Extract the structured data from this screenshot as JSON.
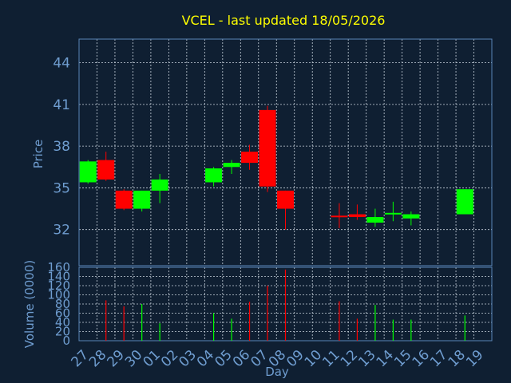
{
  "colors": {
    "background": "#0f1f32",
    "up": "#00ff00",
    "down": "#ff0000",
    "title": "#ffff00",
    "axis_text": "#6f9dd0",
    "grid": "#c8d2dc"
  },
  "chart_data": [
    {
      "type": "candlestick",
      "title": "VCEL - last updated 18/05/2026",
      "ylabel": "Price",
      "xlabel": "",
      "ylim": [
        29.4,
        45.7
      ],
      "yticks": [
        32,
        35,
        38,
        41,
        44
      ],
      "grid": true,
      "categories": [
        "27",
        "28",
        "29",
        "30",
        "01",
        "02",
        "03",
        "04",
        "05",
        "06",
        "07",
        "08",
        "09",
        "10",
        "11",
        "12",
        "13",
        "14",
        "15",
        "16",
        "17",
        "18",
        "19"
      ],
      "candles": [
        {
          "x": "27",
          "open": 35.4,
          "close": 36.9,
          "high": 37.0,
          "low": 35.3
        },
        {
          "x": "28",
          "open": 37.0,
          "close": 35.6,
          "high": 37.6,
          "low": 35.5
        },
        {
          "x": "29",
          "open": 34.8,
          "close": 33.5,
          "high": 34.9,
          "low": 33.4
        },
        {
          "x": "30",
          "open": 33.5,
          "close": 34.8,
          "high": 34.8,
          "low": 33.3
        },
        {
          "x": "01",
          "open": 34.8,
          "close": 35.6,
          "high": 36.0,
          "low": 33.9
        },
        {
          "x": "04",
          "open": 35.4,
          "close": 36.4,
          "high": 36.5,
          "low": 35.1
        },
        {
          "x": "05",
          "open": 36.5,
          "close": 36.8,
          "high": 37.0,
          "low": 36.0
        },
        {
          "x": "06",
          "open": 37.6,
          "close": 36.8,
          "high": 38.1,
          "low": 36.3
        },
        {
          "x": "07",
          "open": 40.6,
          "close": 35.1,
          "high": 40.9,
          "low": 34.7
        },
        {
          "x": "08",
          "open": 34.8,
          "close": 33.5,
          "high": 34.8,
          "low": 32.0
        },
        {
          "x": "11",
          "open": 33.0,
          "close": 32.9,
          "high": 33.9,
          "low": 32.1
        },
        {
          "x": "12",
          "open": 33.1,
          "close": 32.9,
          "high": 33.8,
          "low": 32.7
        },
        {
          "x": "13",
          "open": 32.5,
          "close": 32.9,
          "high": 33.5,
          "low": 32.2
        },
        {
          "x": "14",
          "open": 33.1,
          "close": 33.2,
          "high": 34.0,
          "low": 32.6
        },
        {
          "x": "15",
          "open": 32.8,
          "close": 33.1,
          "high": 33.3,
          "low": 32.3
        },
        {
          "x": "18",
          "open": 33.1,
          "close": 34.9,
          "high": 34.9,
          "low": 33.1
        }
      ]
    },
    {
      "type": "bar",
      "ylabel": "Volume (0000)",
      "xlabel": "Day",
      "ylim": [
        0,
        160
      ],
      "yticks": [
        0,
        20,
        40,
        60,
        80,
        100,
        120,
        140,
        160
      ],
      "grid": true,
      "categories": [
        "27",
        "28",
        "29",
        "30",
        "01",
        "02",
        "03",
        "04",
        "05",
        "06",
        "07",
        "08",
        "09",
        "10",
        "11",
        "12",
        "13",
        "14",
        "15",
        "16",
        "17",
        "18",
        "19"
      ],
      "bars": [
        {
          "x": "28",
          "value": 88,
          "direction": "down"
        },
        {
          "x": "29",
          "value": 75,
          "direction": "down"
        },
        {
          "x": "30",
          "value": 80,
          "direction": "up"
        },
        {
          "x": "01",
          "value": 38,
          "direction": "up"
        },
        {
          "x": "04",
          "value": 60,
          "direction": "up"
        },
        {
          "x": "05",
          "value": 48,
          "direction": "up"
        },
        {
          "x": "06",
          "value": 85,
          "direction": "down"
        },
        {
          "x": "07",
          "value": 120,
          "direction": "down"
        },
        {
          "x": "08",
          "value": 155,
          "direction": "down"
        },
        {
          "x": "11",
          "value": 86,
          "direction": "down"
        },
        {
          "x": "12",
          "value": 48,
          "direction": "down"
        },
        {
          "x": "13",
          "value": 78,
          "direction": "up"
        },
        {
          "x": "14",
          "value": 46,
          "direction": "up"
        },
        {
          "x": "15",
          "value": 46,
          "direction": "up"
        },
        {
          "x": "18",
          "value": 55,
          "direction": "up"
        }
      ]
    }
  ]
}
